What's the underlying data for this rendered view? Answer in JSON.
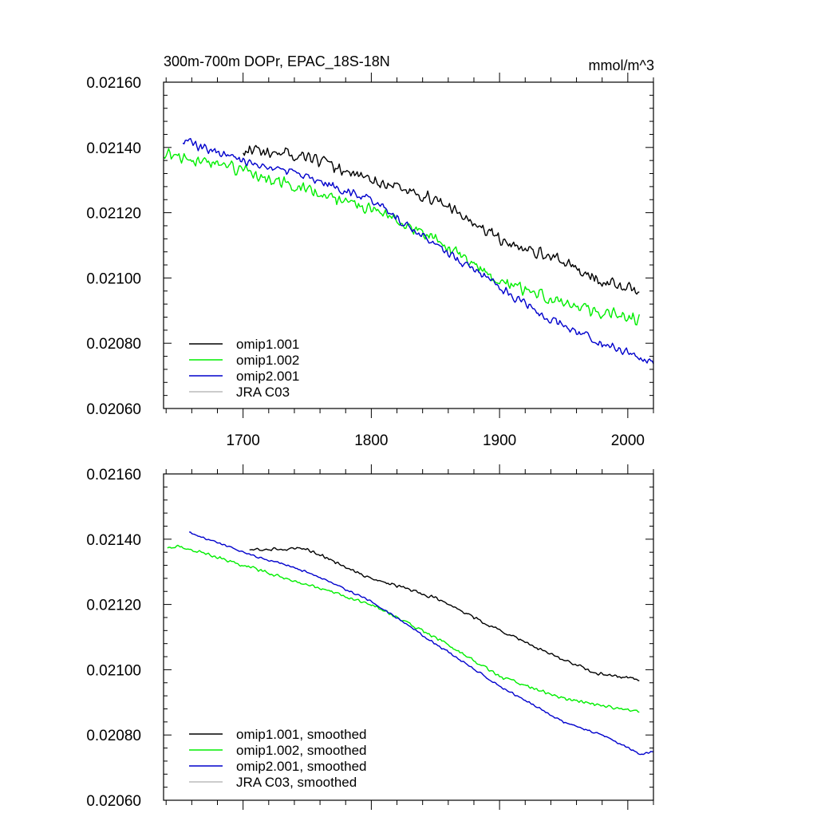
{
  "chart_data": [
    {
      "type": "line",
      "panel": "top",
      "title": "300m-700m DOPr, EPAC_18S-18N",
      "units": "mmol/m^3",
      "xlim": [
        1638,
        2020
      ],
      "ylim": [
        0.0206,
        0.0216
      ],
      "x_ticks": [
        "1700",
        "1800",
        "1900",
        "2000"
      ],
      "y_ticks": [
        "0.02060",
        "0.02080",
        "0.02100",
        "0.02120",
        "0.02140",
        "0.02160"
      ],
      "legend_position": "bottom-left",
      "series": [
        {
          "name": "omip1.001",
          "color": "#000000",
          "x_start": 1700,
          "x_end": 2009,
          "anchors": [
            [
              1700,
              0.02139
            ],
            [
              1750,
              0.02137
            ],
            [
              1800,
              0.0213
            ],
            [
              1850,
              0.02124
            ],
            [
              1900,
              0.02112
            ],
            [
              1950,
              0.02105
            ],
            [
              1975,
              0.021
            ],
            [
              2009,
              0.02096
            ]
          ],
          "noise": 2.2e-05,
          "seed": 11
        },
        {
          "name": "omip1.002",
          "color": "#00ee00",
          "x_start": 1638,
          "x_end": 2009,
          "anchors": [
            [
              1638,
              0.02138
            ],
            [
              1700,
              0.02133
            ],
            [
              1750,
              0.02127
            ],
            [
              1800,
              0.02121
            ],
            [
              1850,
              0.02112
            ],
            [
              1900,
              0.02099
            ],
            [
              1950,
              0.02092
            ],
            [
              2009,
              0.02087
            ]
          ],
          "noise": 2.2e-05,
          "seed": 23
        },
        {
          "name": "omip2.001",
          "color": "#0000cc",
          "x_start": 1653,
          "x_end": 2020,
          "anchors": [
            [
              1653,
              0.02142
            ],
            [
              1700,
              0.02136
            ],
            [
              1750,
              0.02131
            ],
            [
              1800,
              0.02124
            ],
            [
              1850,
              0.0211
            ],
            [
              1900,
              0.02097
            ],
            [
              1950,
              0.02085
            ],
            [
              1980,
              0.0208
            ],
            [
              2020,
              0.02074
            ]
          ],
          "noise": 1.6e-05,
          "seed": 37
        },
        {
          "name": "JRA C03",
          "color": "#bbbbbb",
          "x_start": 0,
          "x_end": 0,
          "anchors": [],
          "noise": 0,
          "seed": 0
        }
      ]
    },
    {
      "type": "line",
      "panel": "bottom",
      "xlim": [
        1638,
        2020
      ],
      "ylim": [
        0.0206,
        0.0216
      ],
      "y_ticks": [
        "0.02060",
        "0.02080",
        "0.02100",
        "0.02120",
        "0.02140",
        "0.02160"
      ],
      "legend_position": "bottom-left",
      "series": [
        {
          "name": "omip1.001, smoothed",
          "color": "#000000",
          "x_start": 1705,
          "x_end": 2009,
          "anchors": [
            [
              1705,
              0.02137
            ],
            [
              1750,
              0.02137
            ],
            [
              1800,
              0.02128
            ],
            [
              1850,
              0.02122
            ],
            [
              1900,
              0.02112
            ],
            [
              1950,
              0.02103
            ],
            [
              1975,
              0.02099
            ],
            [
              2009,
              0.02097
            ]
          ],
          "noise": 6e-06,
          "seed": 51
        },
        {
          "name": "omip1.002, smoothed",
          "color": "#00ee00",
          "x_start": 1641,
          "x_end": 2009,
          "anchors": [
            [
              1641,
              0.02137
            ],
            [
              1650,
              0.02138
            ],
            [
              1700,
              0.02132
            ],
            [
              1750,
              0.02126
            ],
            [
              1800,
              0.0212
            ],
            [
              1850,
              0.0211
            ],
            [
              1900,
              0.02098
            ],
            [
              1950,
              0.02091
            ],
            [
              2009,
              0.02087
            ]
          ],
          "noise": 6e-06,
          "seed": 63
        },
        {
          "name": "omip2.001, smoothed",
          "color": "#0000cc",
          "x_start": 1658,
          "x_end": 2020,
          "anchors": [
            [
              1658,
              0.02142
            ],
            [
              1700,
              0.02136
            ],
            [
              1750,
              0.0213
            ],
            [
              1800,
              0.02121
            ],
            [
              1850,
              0.02108
            ],
            [
              1900,
              0.02095
            ],
            [
              1950,
              0.02084
            ],
            [
              1980,
              0.0208
            ],
            [
              2010,
              0.02074
            ],
            [
              2020,
              0.02075
            ]
          ],
          "noise": 4e-06,
          "seed": 77
        },
        {
          "name": "JRA C03, smoothed",
          "color": "#bbbbbb",
          "x_start": 0,
          "x_end": 0,
          "anchors": [],
          "noise": 0,
          "seed": 0
        }
      ]
    }
  ]
}
